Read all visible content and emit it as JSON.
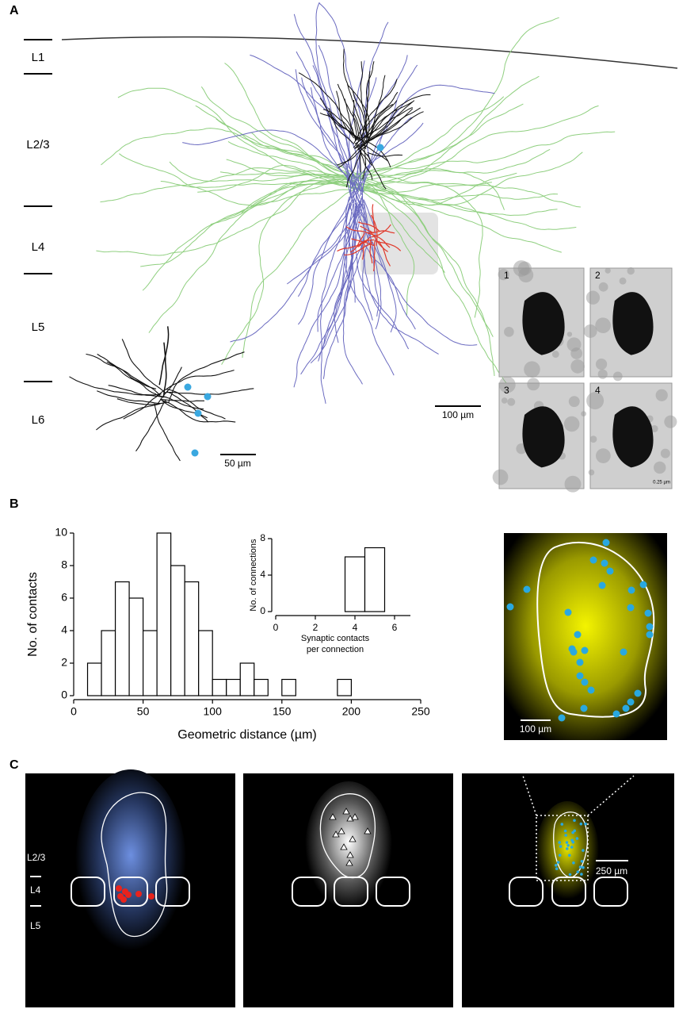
{
  "panel_labels": [
    "A",
    "B",
    "C"
  ],
  "layers_a": [
    "L1",
    "L2/3",
    "L4",
    "L5",
    "L6"
  ],
  "layers_c": [
    "L2/3",
    "L4",
    "L5"
  ],
  "em_labels": [
    "1",
    "2",
    "3",
    "4"
  ],
  "em_scale": "0.25 µm",
  "scale_bars": [
    "100 µm",
    "50 µm",
    "100 µm",
    "250 µm"
  ],
  "chart_data": [
    {
      "type": "histogram",
      "xlabel": "Geometric distance (µm)",
      "ylabel": "No. of contacts",
      "bins": [
        10,
        20,
        30,
        40,
        50,
        60,
        70,
        80,
        90,
        100,
        110,
        120,
        130,
        140,
        150,
        160,
        170,
        180,
        190,
        200
      ],
      "counts": [
        2,
        4,
        7,
        6,
        4,
        10,
        8,
        7,
        4,
        1,
        1,
        2,
        1,
        0,
        1,
        0,
        0,
        0,
        1
      ],
      "xlim": [
        0,
        250
      ],
      "xticks": [
        0,
        50,
        100,
        150,
        200,
        250
      ],
      "ylim": [
        0,
        10
      ],
      "yticks": [
        0,
        2,
        4,
        6,
        8,
        10
      ],
      "color": "#ffffff"
    },
    {
      "type": "histogram",
      "xlabel": [
        "Synaptic contacts",
        "per connection"
      ],
      "ylabel": "No. of connections",
      "bins": [
        3.5,
        4.5,
        5.5
      ],
      "counts": [
        6,
        7
      ],
      "xlim": [
        0,
        6.8
      ],
      "xticks": [
        0,
        2,
        4,
        6
      ],
      "ylim": [
        0,
        8
      ],
      "yticks": [
        0,
        4,
        8
      ],
      "color": "#ffffff"
    }
  ]
}
